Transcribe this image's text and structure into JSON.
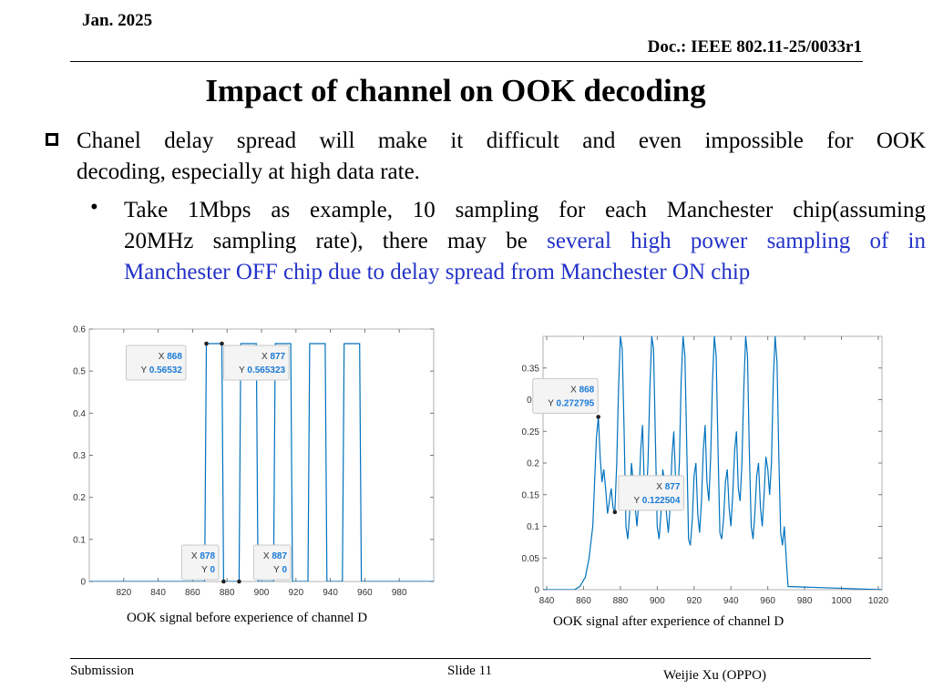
{
  "header": {
    "date": "Jan. 2025",
    "doc": "Doc.: IEEE 802.11-25/0033r1"
  },
  "title": "Impact of channel on OOK decoding",
  "bullet1": {
    "line1": "Chanel delay spread will make it difficult and even impossible for OOK",
    "line2": "decoding, especially at high data rate."
  },
  "bullet2": {
    "dot": "•",
    "line1": "Take 1Mbps as example, 10 sampling for each Manchester chip(assuming",
    "line2_black": "20MHz sampling rate),  there may be ",
    "line2_blue": "several high power sampling of in",
    "line3_blue": "Manchester OFF chip due to delay spread from Manchester ON chip",
    "highlight_color": "#2332c8"
  },
  "captions": {
    "left": "OOK signal before experience of channel D",
    "right": "OOK signal after experience of channel D"
  },
  "chart_data": [
    {
      "type": "line",
      "title": "",
      "xlabel": "",
      "ylabel": "",
      "xlim": [
        800,
        1000
      ],
      "ylim": [
        0,
        0.6
      ],
      "xticks": [
        820,
        840,
        860,
        880,
        900,
        920,
        940,
        960,
        980
      ],
      "yticks": [
        0,
        0.1,
        0.2,
        0.3,
        0.4,
        0.5,
        0.6
      ],
      "grid": false,
      "line_color": "#0072bd",
      "series": [
        {
          "x": [
            800,
            867,
            868,
            877,
            878,
            887,
            888,
            897,
            898,
            907,
            908,
            917,
            918,
            927,
            928,
            937,
            938,
            947,
            948,
            957,
            958,
            967,
            968,
            1000
          ],
          "y": [
            0,
            0,
            0.56532,
            0.565323,
            0,
            0,
            0.5653,
            0.5653,
            0,
            0,
            0.5653,
            0.5653,
            0,
            0,
            0.5653,
            0.5653,
            0,
            0,
            0.5653,
            0.5653,
            0,
            0,
            0,
            0
          ]
        }
      ],
      "datatips": [
        {
          "x": "868",
          "y": "0.56532"
        },
        {
          "x": "877",
          "y": "0.565323"
        },
        {
          "x": "878",
          "y": "0"
        },
        {
          "x": "887",
          "y": "0"
        }
      ]
    },
    {
      "type": "line",
      "title": "",
      "xlabel": "",
      "ylabel": "",
      "xlim": [
        838,
        1022
      ],
      "ylim": [
        0,
        0.4
      ],
      "xticks": [
        840,
        860,
        880,
        900,
        920,
        940,
        960,
        980,
        1000,
        1020
      ],
      "yticks": [
        0,
        0.05,
        0.1,
        0.15,
        0.2,
        0.25,
        0.3,
        0.35
      ],
      "grid": false,
      "line_color": "#0072bd",
      "series": [
        {
          "x": [
            838,
            855,
            858,
            861,
            863,
            865,
            866,
            867,
            868,
            869,
            870,
            871,
            872,
            873,
            874,
            875,
            876,
            877,
            878,
            879,
            880,
            881,
            882,
            883,
            884,
            885,
            886,
            887,
            888,
            889,
            890,
            891,
            892,
            893,
            894,
            895,
            896,
            897,
            898,
            899,
            900,
            901,
            902,
            903,
            904,
            905,
            906,
            907,
            908,
            909,
            910,
            911,
            912,
            913,
            914,
            915,
            916,
            917,
            918,
            919,
            920,
            921,
            922,
            923,
            924,
            925,
            926,
            927,
            928,
            929,
            930,
            931,
            932,
            933,
            934,
            935,
            936,
            937,
            938,
            939,
            940,
            941,
            942,
            943,
            944,
            945,
            946,
            947,
            948,
            949,
            950,
            951,
            952,
            953,
            954,
            955,
            956,
            957,
            958,
            959,
            960,
            961,
            962,
            963,
            964,
            965,
            966,
            967,
            968,
            969,
            970,
            971,
            1022
          ],
          "y": [
            0,
            0,
            0.005,
            0.02,
            0.05,
            0.1,
            0.17,
            0.24,
            0.2728,
            0.21,
            0.17,
            0.19,
            0.16,
            0.12,
            0.14,
            0.16,
            0.13,
            0.1225,
            0.2,
            0.32,
            0.4,
            0.38,
            0.25,
            0.1,
            0.08,
            0.12,
            0.2,
            0.17,
            0.13,
            0.1,
            0.14,
            0.22,
            0.26,
            0.16,
            0.14,
            0.2,
            0.32,
            0.4,
            0.38,
            0.24,
            0.1,
            0.08,
            0.12,
            0.19,
            0.17,
            0.12,
            0.09,
            0.13,
            0.21,
            0.25,
            0.17,
            0.14,
            0.2,
            0.33,
            0.4,
            0.37,
            0.23,
            0.08,
            0.07,
            0.11,
            0.18,
            0.2,
            0.12,
            0.09,
            0.14,
            0.22,
            0.26,
            0.17,
            0.14,
            0.21,
            0.33,
            0.4,
            0.37,
            0.22,
            0.09,
            0.08,
            0.11,
            0.17,
            0.19,
            0.13,
            0.1,
            0.15,
            0.22,
            0.25,
            0.16,
            0.14,
            0.2,
            0.32,
            0.4,
            0.37,
            0.22,
            0.1,
            0.08,
            0.12,
            0.18,
            0.2,
            0.13,
            0.1,
            0.15,
            0.21,
            0.19,
            0.15,
            0.2,
            0.33,
            0.4,
            0.36,
            0.21,
            0.09,
            0.07,
            0.1,
            0.05,
            0.005,
            0
          ]
        }
      ],
      "datatips": [
        {
          "x": "868",
          "y": "0.272795"
        },
        {
          "x": "877",
          "y": "0.122504"
        }
      ]
    }
  ],
  "footer": {
    "submission": "Submission",
    "slide": "Slide 11",
    "author": "Weijie Xu (OPPO)"
  }
}
